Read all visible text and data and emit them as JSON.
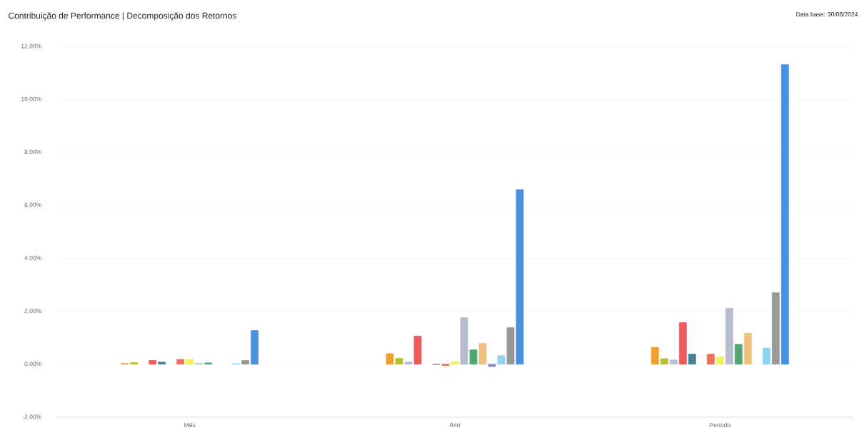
{
  "chart_data": {
    "type": "bar",
    "title": "Contribuição de Performance  |  Decomposição dos Retornos",
    "annotations": [
      "Data base: 30/08/2024"
    ],
    "categories": [
      "Mês",
      "Ano",
      "Período"
    ],
    "series": [
      {
        "color": "#f0a030",
        "values": [
          0.03,
          0.4,
          0.64
        ]
      },
      {
        "color": "#b8c030",
        "values": [
          0.06,
          0.22,
          0.21
        ]
      },
      {
        "color": "#b8bcd8",
        "values": [
          null,
          0.08,
          0.16
        ]
      },
      {
        "color": "#f05a5a",
        "values": [
          0.14,
          1.06,
          1.57
        ]
      },
      {
        "color": "#4a7f98",
        "values": [
          0.08,
          null,
          0.38
        ]
      },
      {
        "color": "#a08070",
        "values": [
          null,
          -0.01,
          null
        ]
      },
      {
        "color": "#e8735a",
        "values": [
          0.18,
          -0.05,
          0.38
        ]
      },
      {
        "color": "#f0f060",
        "values": [
          0.18,
          0.1,
          0.28
        ]
      },
      {
        "color": "#b8bccc",
        "values": [
          0.03,
          1.76,
          2.11
        ]
      },
      {
        "color": "#50a870",
        "values": [
          0.05,
          0.54,
          0.75
        ]
      },
      {
        "color": "#f0c080",
        "values": [
          null,
          0.79,
          1.17
        ]
      },
      {
        "color": "#8090d0",
        "values": [
          null,
          -0.09,
          null
        ]
      },
      {
        "color": "#90d0f0",
        "values": [
          0.02,
          0.32,
          0.61
        ]
      },
      {
        "color": "#999999",
        "values": [
          0.14,
          1.38,
          2.7
        ]
      },
      {
        "color": "#4a90e0",
        "values": [
          1.27,
          6.59,
          11.31
        ]
      }
    ],
    "ylim": [
      -2,
      12
    ],
    "yticks": [
      {
        "value": -2,
        "label": "-2,00%"
      },
      {
        "value": 0,
        "label": "0,00%"
      },
      {
        "value": 2,
        "label": "2,00%"
      },
      {
        "value": 4,
        "label": "4,00%"
      },
      {
        "value": 6,
        "label": "6,00%"
      },
      {
        "value": 8,
        "label": "8,00%"
      },
      {
        "value": 10,
        "label": "10,00%"
      },
      {
        "value": 12,
        "label": "12,00%"
      }
    ],
    "grid": "y"
  }
}
